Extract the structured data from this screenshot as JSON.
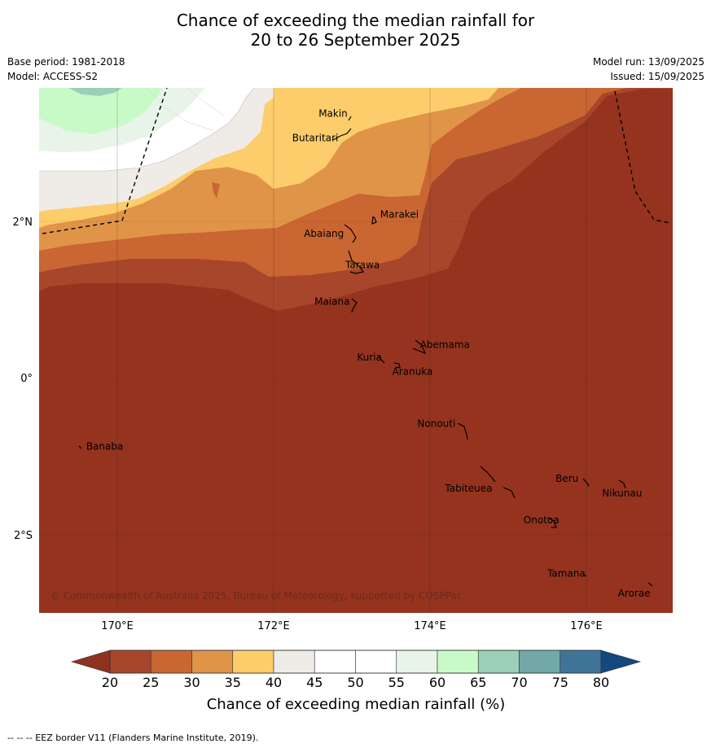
{
  "title_line1": "Chance of exceeding the median rainfall for",
  "title_line2": "20 to 26 September 2025",
  "base_period": "Base period: 1981-2018",
  "model": "Model: ACCESS-S2",
  "model_run": "Model run: 13/09/2025",
  "issued": "Issued: 15/09/2025",
  "copyright": "© Commonwealth of Australia 2025, Bureau of Meteorology, supported by COSPPac",
  "axes": {
    "lat_labels": [
      "2°N",
      "0°",
      "2°S"
    ],
    "lon_labels": [
      "170°E",
      "172°E",
      "174°E",
      "176°E"
    ]
  },
  "places": [
    {
      "name": "Makin",
      "lon": 172.95,
      "lat": 3.35
    },
    {
      "name": "Butaritari",
      "lon": 172.8,
      "lat": 3.05
    },
    {
      "name": "Marakei",
      "lon": 173.3,
      "lat": 2.0
    },
    {
      "name": "Abaiang",
      "lon": 172.95,
      "lat": 1.8
    },
    {
      "name": "Tarawa",
      "lon": 173.0,
      "lat": 1.4
    },
    {
      "name": "Maiana",
      "lon": 172.98,
      "lat": 0.95
    },
    {
      "name": "Abemama",
      "lon": 173.85,
      "lat": 0.4
    },
    {
      "name": "Kuria",
      "lon": 173.4,
      "lat": 0.22
    },
    {
      "name": "Aranuka",
      "lon": 173.6,
      "lat": 0.18
    },
    {
      "name": "Nonouti",
      "lon": 174.4,
      "lat": -0.63
    },
    {
      "name": "Banaba",
      "lon": 169.54,
      "lat": -0.86
    },
    {
      "name": "Tabiteuea",
      "lon": 174.9,
      "lat": -1.35
    },
    {
      "name": "Beru",
      "lon": 175.98,
      "lat": -1.33
    },
    {
      "name": "Nikunau",
      "lon": 176.43,
      "lat": -1.37
    },
    {
      "name": "Onotoa",
      "lon": 175.55,
      "lat": -1.8
    },
    {
      "name": "Tamana",
      "lon": 175.98,
      "lat": -2.5
    },
    {
      "name": "Arorae",
      "lon": 176.82,
      "lat": -2.65
    }
  ],
  "colorbar": {
    "title": "Chance of exceeding median rainfall (%)",
    "ticks": [
      "20",
      "25",
      "30",
      "35",
      "40",
      "45",
      "50",
      "55",
      "60",
      "65",
      "70",
      "75",
      "80"
    ],
    "under_color": "#8f3220",
    "over_color": "#14497f",
    "colors": [
      "#a8462b",
      "#c96632",
      "#e09448",
      "#fdcd6c",
      "#efebe6",
      "#ffffff",
      "#ffffff",
      "#e9f4e9",
      "#c8fac8",
      "#9bcfb8",
      "#72a8a6",
      "#3f7498"
    ]
  },
  "footnote": "--  --  -- EEZ border V11 (Flanders Marine Institute, 2019)."
}
